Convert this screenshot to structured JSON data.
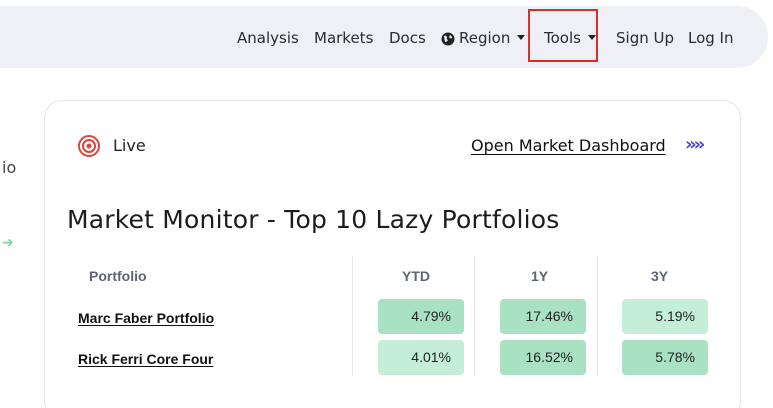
{
  "nav": {
    "items": [
      "Analysis",
      "Markets",
      "Docs",
      "Region",
      "Tools",
      "Sign Up",
      "Log In"
    ]
  },
  "left": {
    "fragment_text": "io",
    "arrow_glyph": "➜"
  },
  "card": {
    "live_label": "Live",
    "dashboard_link": "Open Market Dashboard",
    "dashboard_arrow": "»»",
    "title": "Market Monitor - Top 10 Lazy Portfolios"
  },
  "table": {
    "headers": [
      "Portfolio",
      "YTD",
      "1Y",
      "3Y"
    ],
    "rows": [
      {
        "name": "Marc Faber Portfolio",
        "ytd": "4.79%",
        "y1": "17.46%",
        "y3": "5.19%",
        "colors": [
          "#a8e2c3",
          "#a8e2c3",
          "#c4eed8"
        ]
      },
      {
        "name": "Rick Ferri Core Four",
        "ytd": "4.01%",
        "y1": "16.52%",
        "y3": "5.78%",
        "colors": [
          "#c4eed8",
          "#a8e2c3",
          "#a8e2c3"
        ]
      }
    ]
  },
  "colors": {
    "accent_link_arrow": "#4b3fe0",
    "highlight": "#d93025",
    "live_icon": "#d9463b"
  }
}
